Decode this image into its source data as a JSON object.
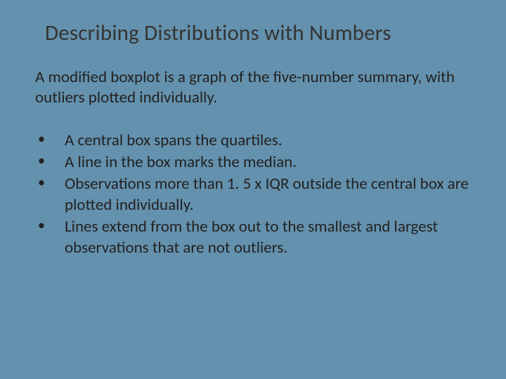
{
  "slide": {
    "background_color": "#6491ad",
    "text_color": "#222222",
    "title_color": "#343434",
    "title_fontsize": 31,
    "body_fontsize": 23,
    "font_family": "Candara",
    "title": "Describing Distributions with Numbers",
    "intro": "A modified boxplot is a graph of the five-number summary, with outliers plotted individually.",
    "bullets": [
      "A central box spans the quartiles.",
      "A line in the box marks the median.",
      "Observations more than 1. 5 x IQR outside the central box are plotted individually.",
      "Lines extend from the box out to the smallest and largest observations that are not outliers."
    ]
  }
}
